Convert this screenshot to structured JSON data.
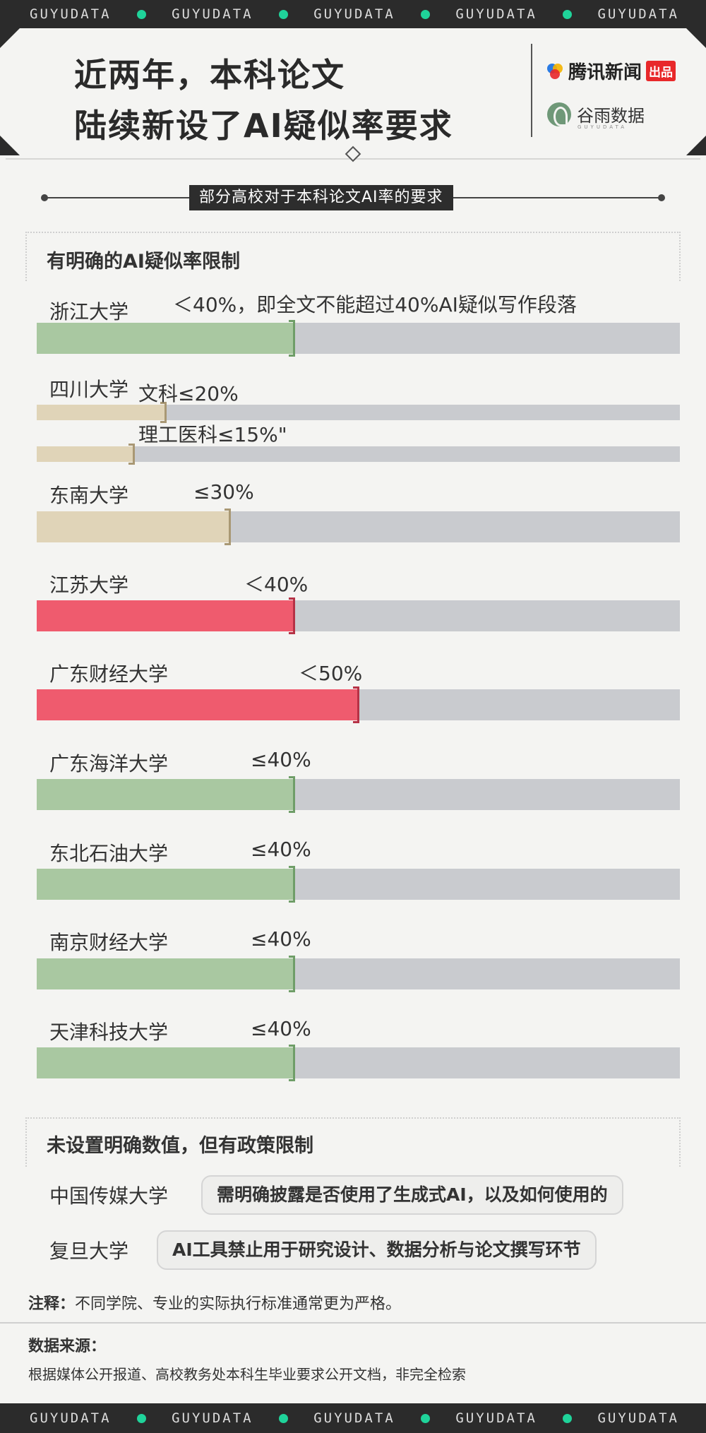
{
  "ribbon": {
    "word": "GUYUDATA",
    "dot_color": "#1fd39a"
  },
  "header": {
    "title_line1": "近两年，本科论文",
    "title_line2": "陆续新设了AI疑似率要求",
    "logo_tencent": "腾讯新闻",
    "logo_tencent_badge": "出品",
    "logo_guyu": "谷雨数据",
    "logo_guyu_sub": "GUYUDATA"
  },
  "subtitle": "部分高校对于本科论文AI率的要求",
  "section1_title": "有明确的AI疑似率限制",
  "section2_title": "未设置明确数值，但有政策限制",
  "chart_data": {
    "type": "bar",
    "title": "部分高校对于本科论文AI率的要求",
    "value_unit": "%",
    "xlim": [
      0,
      100
    ],
    "colors": {
      "green": "#a9c8a1",
      "beige": "#e0d4b8",
      "red": "#ef5b6e",
      "track": "#c9cbcf"
    },
    "bars": [
      {
        "university": "浙江大学",
        "value": 40,
        "label": "＜40%，即全文不能超过40%AI疑似写作段落",
        "color": "green"
      },
      {
        "university": "四川大学",
        "value": 20,
        "label": "文科≤20%",
        "color": "beige"
      },
      {
        "university": "",
        "value": 15,
        "label": "理工医科≤15%\"",
        "color": "beige"
      },
      {
        "university": "东南大学",
        "value": 30,
        "label": "≤30%",
        "color": "beige"
      },
      {
        "university": "江苏大学",
        "value": 40,
        "label": "＜40%",
        "color": "red"
      },
      {
        "university": "广东财经大学",
        "value": 50,
        "label": "＜50%",
        "color": "red"
      },
      {
        "university": "广东海洋大学",
        "value": 40,
        "label": "≤40%",
        "color": "green"
      },
      {
        "university": "东北石油大学",
        "value": 40,
        "label": "≤40%",
        "color": "green"
      },
      {
        "university": "南京财经大学",
        "value": 40,
        "label": "≤40%",
        "color": "green"
      },
      {
        "university": "天津科技大学",
        "value": 40,
        "label": "≤40%",
        "color": "green"
      }
    ]
  },
  "policies": [
    {
      "university": "中国传媒大学",
      "text": "需明确披露是否使用了生成式AI，以及如何使用的"
    },
    {
      "university": "复旦大学",
      "text": "AI工具禁止用于研究设计、数据分析与论文撰写环节"
    }
  ],
  "note_label": "注释：",
  "note_text": "不同学院、专业的实际执行标准通常更为严格。",
  "source_title": "数据来源：",
  "source_text": "根据媒体公开报道、高校教务处本科生毕业要求公开文档，非完全检索"
}
